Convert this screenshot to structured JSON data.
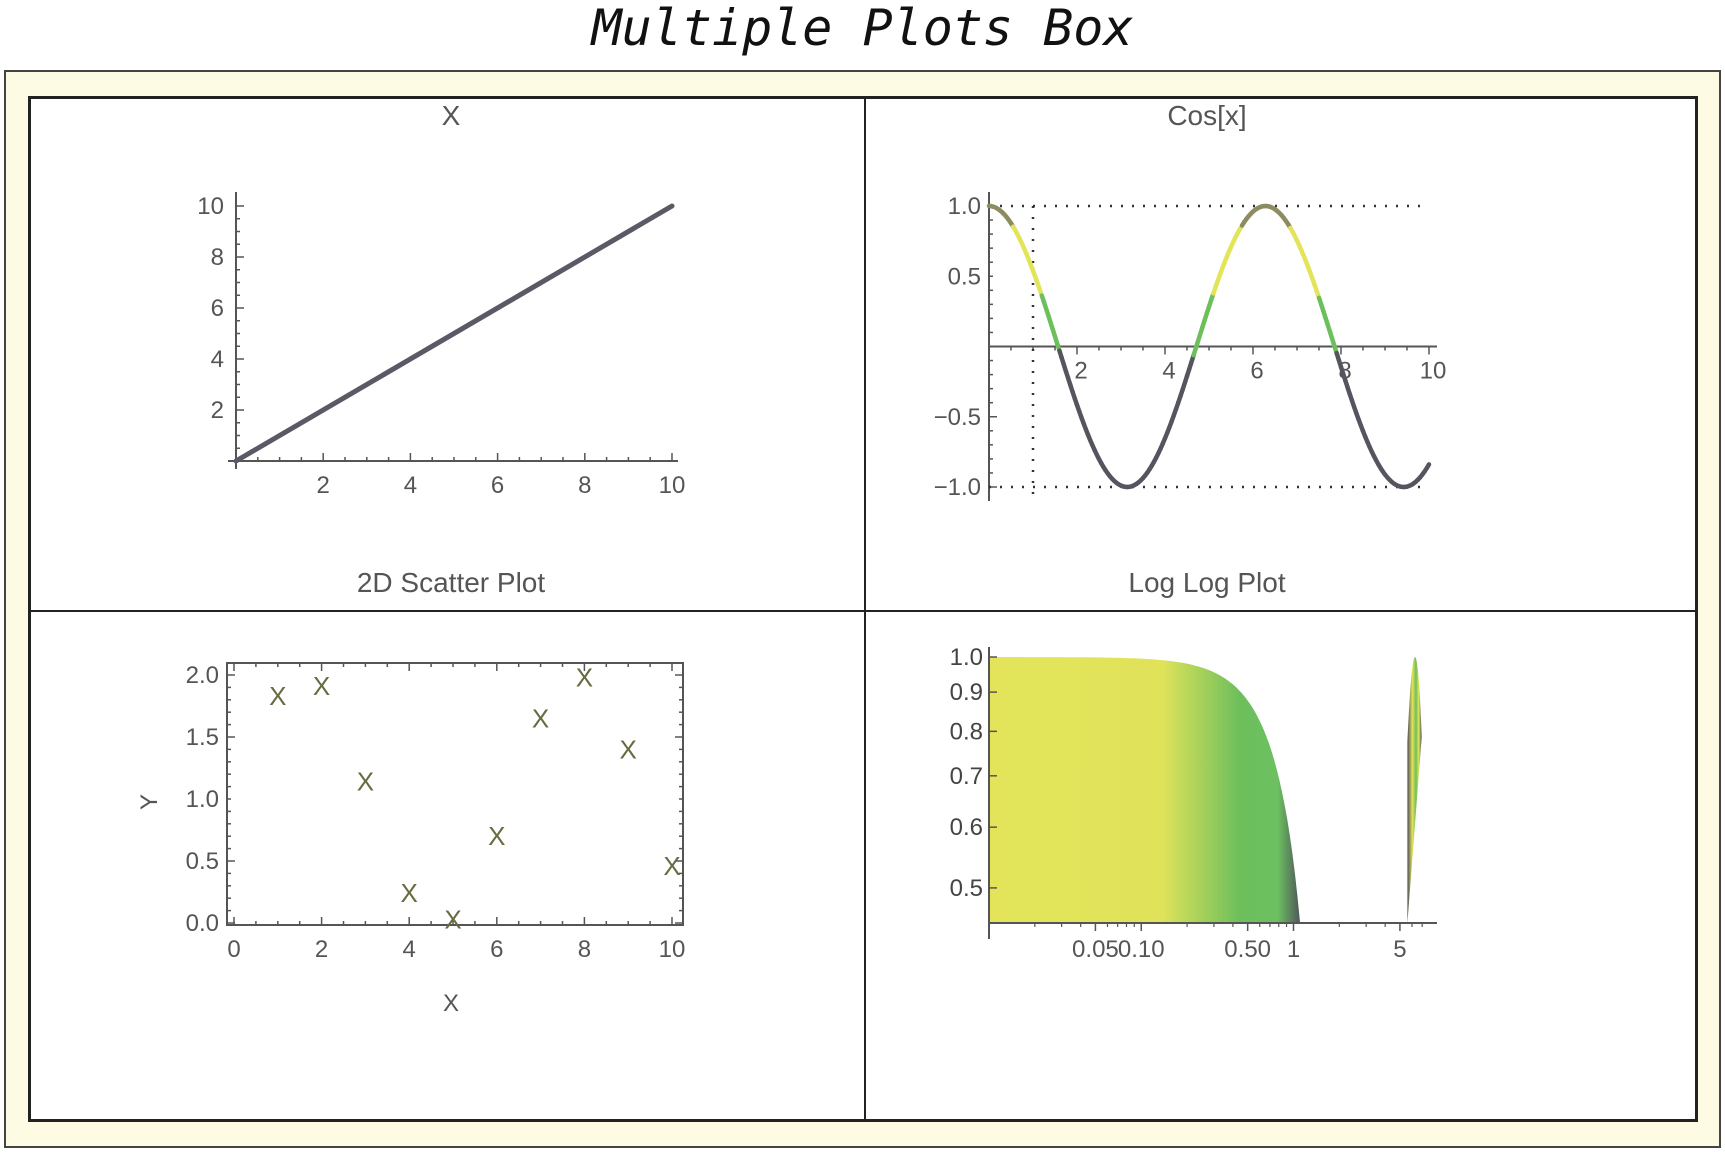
{
  "title": "Multiple Plots Box",
  "colors": {
    "frame_bg": "#fdfbe4",
    "curve": "#5a5a66",
    "yellow": "#e3e45a",
    "green": "#6dbf5c",
    "gray": "#555560",
    "marker": "#6a6a40"
  },
  "chart_data": [
    {
      "type": "line",
      "title": "X",
      "function": "x",
      "x": [
        0,
        10
      ],
      "y": [
        0,
        10
      ],
      "xlim": [
        0,
        10
      ],
      "ylim": [
        0,
        10
      ],
      "xticks": [
        "2",
        "4",
        "6",
        "8",
        "10"
      ],
      "yticks": [
        "2",
        "4",
        "6",
        "8",
        "10"
      ],
      "grid": false
    },
    {
      "type": "line",
      "title": "Cos[x]",
      "function": "cos(x)",
      "xlim": [
        0,
        10
      ],
      "ylim": [
        -1,
        1
      ],
      "xticks": [
        "2",
        "4",
        "6",
        "8",
        "10"
      ],
      "yticks": [
        "1.0",
        "0.5",
        "-0.5",
        "-1.0"
      ],
      "gridlines": {
        "x": [
          1
        ],
        "y": [
          1,
          -1
        ]
      },
      "color_scheme": "yellow-green-gray gradient"
    },
    {
      "type": "scatter",
      "title": "2D Scatter Plot",
      "xlabel": "X",
      "ylabel": "Y",
      "marker": "X",
      "x": [
        1,
        2,
        3,
        4,
        5,
        6,
        7,
        8,
        9,
        10
      ],
      "y": [
        1.83,
        1.91,
        1.14,
        0.24,
        0.03,
        0.7,
        1.65,
        1.98,
        1.4,
        0.46
      ],
      "xlim": [
        0,
        10
      ],
      "ylim": [
        0,
        2
      ],
      "xticks": [
        "0",
        "2",
        "4",
        "6",
        "8",
        "10"
      ],
      "yticks": [
        "2.0",
        "1.5",
        "1.0",
        "0.5",
        "0.0"
      ]
    },
    {
      "type": "area",
      "title": "Log Log Plot",
      "scale": "log-log",
      "xticks": [
        "0.05",
        "0.10",
        "0.50",
        "1",
        "5"
      ],
      "yticks": [
        "1.0",
        "0.9",
        "0.8",
        "0.7",
        "0.6",
        "0.5"
      ],
      "ylim": [
        0.45,
        1.0
      ],
      "color_scheme": "yellow-green-gray gradient"
    }
  ]
}
